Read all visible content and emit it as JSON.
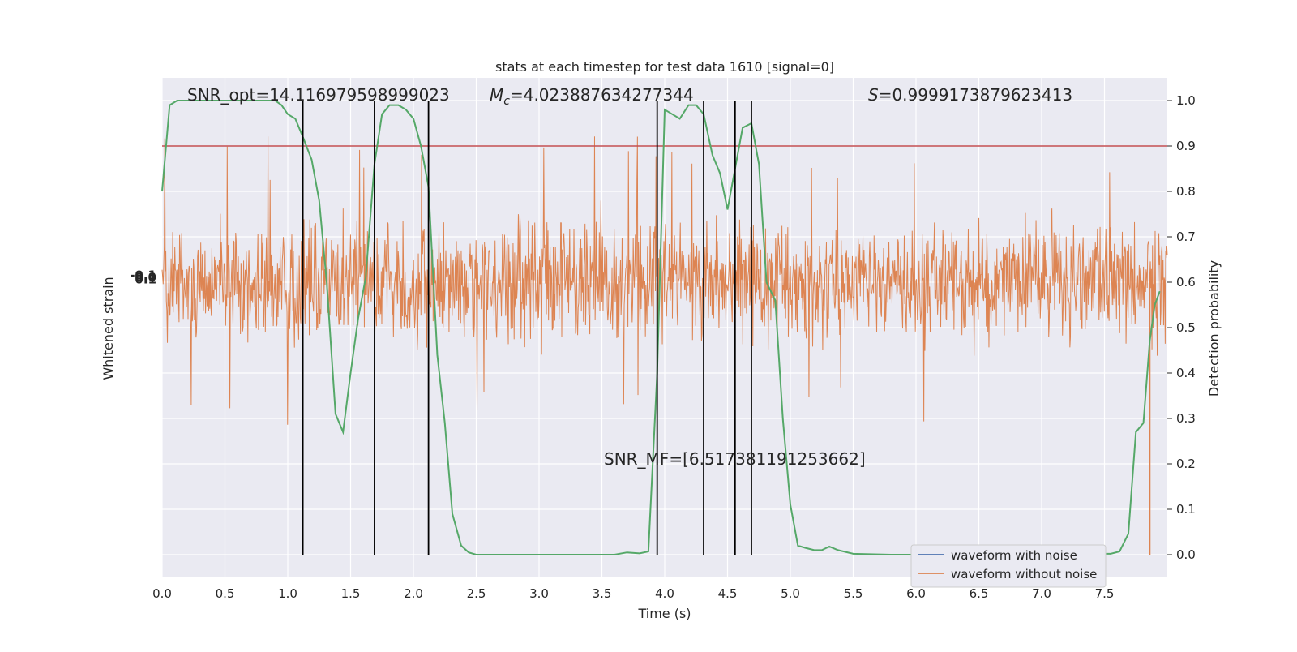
{
  "chart_data": {
    "type": "line",
    "title": "stats at each timestep for test data 1610 [signal=0]",
    "xlabel": "Time (s)",
    "ylabel_left": "Whitened strain",
    "ylabel_right": "Detection probability",
    "xlim": [
      0.0,
      8.0
    ],
    "ylim_right": [
      -0.05,
      1.05
    ],
    "x_ticks": [
      "0.0",
      "0.5",
      "1.0",
      "1.5",
      "2.0",
      "2.5",
      "3.0",
      "3.5",
      "4.0",
      "4.5",
      "5.0",
      "5.5",
      "6.0",
      "6.5",
      "7.0",
      "7.5"
    ],
    "x_tick_values": [
      0.0,
      0.5,
      1.0,
      1.5,
      2.0,
      2.5,
      3.0,
      3.5,
      4.0,
      4.5,
      5.0,
      5.5,
      6.0,
      6.5,
      7.0,
      7.5
    ],
    "y_right_ticks": [
      "0.0",
      "0.1",
      "0.2",
      "0.3",
      "0.4",
      "0.5",
      "0.6",
      "0.7",
      "0.8",
      "0.9",
      "1.0"
    ],
    "y_right_tick_values": [
      0.0,
      0.1,
      0.2,
      0.3,
      0.4,
      0.5,
      0.6,
      0.7,
      0.8,
      0.9,
      1.0
    ],
    "left_tick_labels": [
      "-0.1",
      "0.0",
      "0.1"
    ],
    "grid": true,
    "legend_position": "lower-right",
    "annotations": {
      "snr_opt": "SNR_opt=14.116979598999023",
      "mc_symbol": "M",
      "mc_sub": "c",
      "mc_value": "=4.023887634277344",
      "s_symbol": "S",
      "s_value": "=0.9999173879623413",
      "snr_mf": "SNR_MF=[6.517381191253662]"
    },
    "threshold": 0.9,
    "vertical_lines_x": [
      1.12,
      1.69,
      2.12,
      3.94,
      4.31,
      4.56,
      4.69
    ],
    "series": [
      {
        "name": "waveform with noise",
        "color": "#4c72b0",
        "kind": "strain"
      },
      {
        "name": "waveform without noise",
        "color": "#dd8452",
        "kind": "strain"
      },
      {
        "color": "#55a868",
        "kind": "probability",
        "x": [
          0.0,
          0.06,
          0.12,
          0.2,
          0.3,
          0.4,
          0.5,
          0.6,
          0.7,
          0.8,
          0.9,
          0.95,
          1.0,
          1.06,
          1.12,
          1.19,
          1.25,
          1.31,
          1.38,
          1.44,
          1.5,
          1.56,
          1.62,
          1.69,
          1.75,
          1.81,
          1.88,
          1.94,
          2.0,
          2.06,
          2.12,
          2.19,
          2.25,
          2.31,
          2.38,
          2.44,
          2.5,
          2.6,
          2.8,
          3.0,
          3.2,
          3.4,
          3.5,
          3.6,
          3.7,
          3.8,
          3.87,
          3.94,
          4.0,
          4.06,
          4.12,
          4.19,
          4.25,
          4.31,
          4.38,
          4.44,
          4.5,
          4.56,
          4.62,
          4.69,
          4.75,
          4.81,
          4.88,
          4.94,
          5.0,
          5.06,
          5.12,
          5.19,
          5.25,
          5.31,
          5.38,
          5.5,
          5.8,
          6.0,
          6.5,
          7.0,
          7.4,
          7.55,
          7.62,
          7.69,
          7.75,
          7.81,
          7.86,
          7.9,
          7.94
        ],
        "y": [
          0.8,
          0.99,
          1.0,
          1.0,
          1.0,
          1.0,
          1.0,
          1.0,
          1.0,
          1.0,
          1.0,
          0.99,
          0.97,
          0.96,
          0.92,
          0.87,
          0.78,
          0.6,
          0.31,
          0.27,
          0.4,
          0.52,
          0.61,
          0.86,
          0.97,
          0.99,
          0.99,
          0.98,
          0.96,
          0.9,
          0.81,
          0.44,
          0.29,
          0.09,
          0.02,
          0.005,
          0.0,
          0.0,
          0.0,
          0.0,
          0.0,
          0.0,
          0.0,
          0.0,
          0.005,
          0.003,
          0.007,
          0.4,
          0.98,
          0.97,
          0.96,
          0.99,
          0.99,
          0.97,
          0.88,
          0.84,
          0.76,
          0.85,
          0.94,
          0.95,
          0.86,
          0.6,
          0.56,
          0.3,
          0.11,
          0.02,
          0.015,
          0.01,
          0.01,
          0.018,
          0.01,
          0.002,
          0.0,
          0.0,
          0.0,
          0.0,
          0.002,
          0.002,
          0.007,
          0.046,
          0.27,
          0.29,
          0.47,
          0.55,
          0.58
        ]
      }
    ]
  }
}
